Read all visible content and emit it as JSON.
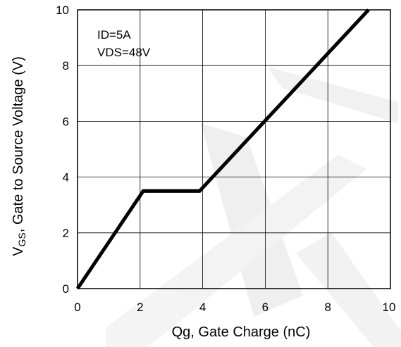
{
  "chart_data": {
    "type": "line",
    "xlabel": "Qg, Gate Charge (nC)",
    "ylabel": {
      "main": "V",
      "subscript": "GS",
      "rest": ", Gate to Source Voltage (V)"
    },
    "xlim": [
      0,
      10
    ],
    "ylim": [
      0,
      10
    ],
    "xticks": [
      "0",
      "2",
      "4",
      "6",
      "8",
      "10"
    ],
    "yticks": [
      "0",
      "2",
      "4",
      "6",
      "8",
      "10"
    ],
    "grid": true,
    "annotations": [
      "ID=5A",
      "VDS=48V"
    ],
    "series": [
      {
        "x": [
          0,
          2.1,
          3.9,
          9.3
        ],
        "y": [
          0,
          3.5,
          3.5,
          10
        ]
      }
    ]
  }
}
